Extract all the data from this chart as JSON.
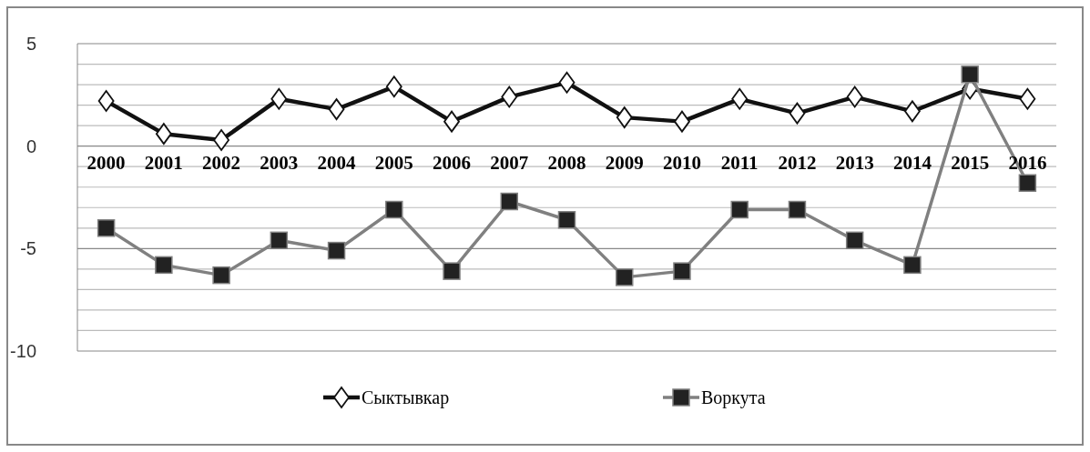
{
  "chart_data": {
    "type": "line",
    "categories": [
      "2000",
      "2001",
      "2002",
      "2003",
      "2004",
      "2005",
      "2006",
      "2007",
      "2008",
      "2009",
      "2010",
      "2011",
      "2012",
      "2013",
      "2014",
      "2015",
      "2016"
    ],
    "series": [
      {
        "name": "Сыктывкар",
        "color": "#111111",
        "marker": "diamond",
        "values": [
          2.2,
          0.6,
          0.3,
          2.3,
          1.8,
          2.9,
          1.2,
          2.4,
          3.1,
          1.4,
          1.2,
          2.3,
          1.6,
          2.4,
          1.7,
          2.8,
          2.3
        ]
      },
      {
        "name": "Воркута",
        "color": "#808080",
        "marker": "square",
        "values": [
          -4.0,
          -5.8,
          -6.3,
          -4.6,
          -5.1,
          -3.1,
          -6.1,
          -2.7,
          -3.6,
          -6.4,
          -6.1,
          -3.1,
          -3.1,
          -4.6,
          -5.8,
          3.5,
          -1.8
        ]
      }
    ],
    "ylim": [
      -10,
      5
    ],
    "yticks": [
      -10,
      {
        "value": -9,
        "label": null
      },
      {
        "value": -8,
        "label": null
      },
      {
        "value": -7,
        "label": null
      },
      {
        "value": -6,
        "label": null
      },
      -5,
      {
        "value": -4,
        "label": null
      },
      {
        "value": -3,
        "label": null
      },
      {
        "value": -2,
        "label": null
      },
      {
        "value": -1,
        "label": null
      },
      0,
      {
        "value": 1,
        "label": null
      },
      {
        "value": 2,
        "label": null
      },
      {
        "value": 3,
        "label": null
      },
      {
        "value": 4,
        "label": null
      },
      5
    ],
    "grid": "y",
    "legend": "bottom"
  }
}
